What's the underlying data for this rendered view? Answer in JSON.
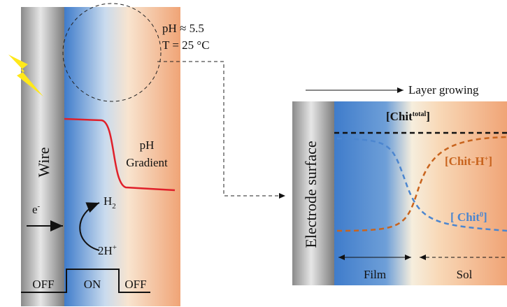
{
  "left_panel": {
    "conditions": [
      "pH ≈ 5.5",
      "T = 25 °C"
    ],
    "wire_label": "Wire",
    "gradient_label": [
      "pH",
      "Gradient"
    ],
    "electron": {
      "base": "e",
      "sup": "-"
    },
    "h2": {
      "base": "H",
      "sub": "2"
    },
    "proton": {
      "base": "2H",
      "sup": "+"
    },
    "pulse_labels": [
      "OFF",
      "ON",
      "OFF"
    ]
  },
  "right_panel": {
    "arrow_label": "Layer growing",
    "electrode_label": "Electrode surface",
    "chit_total": {
      "base": "[Chit",
      "sup": "total",
      "end": "]"
    },
    "chit_h": {
      "base": "[Chit-H",
      "sup": "+",
      "end": "]"
    },
    "chit_0": {
      "base": "[ Chit",
      "sup": "0",
      "end": "]"
    },
    "regions": [
      "Film",
      "Sol"
    ]
  }
}
